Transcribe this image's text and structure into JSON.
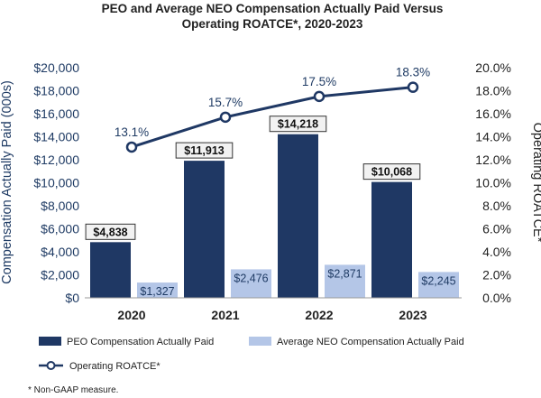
{
  "chart_data": {
    "type": "bar+line",
    "title_lines": [
      "PEO and Average NEO Compensation Actually Paid Versus",
      "Operating ROATCE*, 2020-2023"
    ],
    "categories": [
      "2020",
      "2021",
      "2022",
      "2023"
    ],
    "ylabel_left": "Compensation Actually Paid (000s)",
    "ylabel_right": "Operating ROATCE*",
    "ylim_left": [
      0,
      20000
    ],
    "ylim_right": [
      0,
      20
    ],
    "yticks_left": [
      "$0",
      "$2,000",
      "$4,000",
      "$6,000",
      "$8,000",
      "$10,000",
      "$12,000",
      "$14,000",
      "$16,000",
      "$18,000",
      "$20,000"
    ],
    "yticks_right": [
      "0.0%",
      "2.0%",
      "4.0%",
      "6.0%",
      "8.0%",
      "10.0%",
      "12.0%",
      "14.0%",
      "16.0%",
      "18.0%",
      "20.0%"
    ],
    "series": [
      {
        "name": "PEO Compensation Actually Paid",
        "kind": "bar",
        "axis": "left",
        "color": "#1f3864",
        "values": [
          4838,
          11913,
          14218,
          10068
        ],
        "labels": [
          "$4,838",
          "$11,913",
          "$14,218",
          "$10,068"
        ]
      },
      {
        "name": "Average NEO Compensation Actually Paid",
        "kind": "bar",
        "axis": "left",
        "color": "#b4c6e7",
        "values": [
          1327,
          2476,
          2871,
          2245
        ],
        "labels": [
          "$1,327",
          "$2,476",
          "$2,871",
          "$2,245"
        ]
      },
      {
        "name": "Operating ROATCE*",
        "kind": "line",
        "axis": "right",
        "color": "#1f3864",
        "values": [
          13.1,
          15.7,
          17.5,
          18.3
        ],
        "labels": [
          "13.1%",
          "15.7%",
          "17.5%",
          "18.3%"
        ]
      }
    ],
    "grid": false,
    "legend_position": "bottom",
    "footnote": "* Non-GAAP measure."
  }
}
